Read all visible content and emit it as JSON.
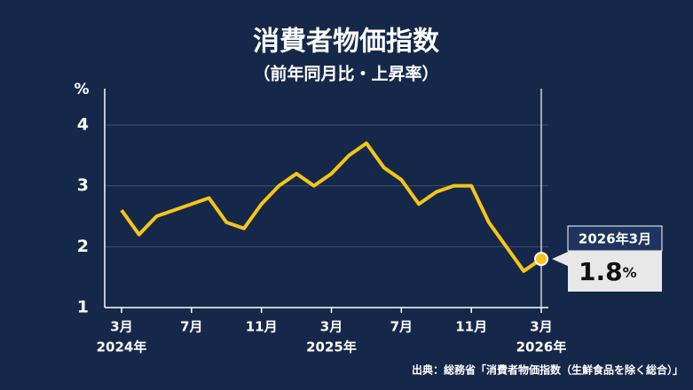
{
  "chart_data": {
    "type": "line",
    "title": "消費者物価指数",
    "subtitle": "（前年同月比・上昇率）",
    "y_unit": "%",
    "categories": [
      "3月",
      null,
      null,
      null,
      "7月",
      null,
      null,
      null,
      "11月",
      null,
      null,
      null,
      "3月",
      null,
      null,
      null,
      "7月",
      null,
      null,
      null,
      "11月",
      null,
      null,
      null,
      "3月"
    ],
    "year_labels": [
      "2024年",
      null,
      null,
      null,
      null,
      null,
      null,
      null,
      null,
      null,
      null,
      null,
      "2025年",
      null,
      null,
      null,
      null,
      null,
      null,
      null,
      null,
      null,
      null,
      null,
      "2026年"
    ],
    "series": [
      {
        "color": "#f5c518",
        "values": [
          2.6,
          2.2,
          2.5,
          2.6,
          2.7,
          2.8,
          2.4,
          2.3,
          2.7,
          3.0,
          3.2,
          3.0,
          3.2,
          3.5,
          3.7,
          3.3,
          3.1,
          2.7,
          2.9,
          3.0,
          3.0,
          2.4,
          2.0,
          1.6,
          1.8
        ]
      }
    ],
    "ylim": [
      1,
      4
    ],
    "yticks": [
      1,
      2,
      3,
      4
    ],
    "grid": true,
    "callout_date": "2026年3月",
    "source": "出典：総務省「消費者物価指数（生鮮食品を除く総合）」"
  }
}
